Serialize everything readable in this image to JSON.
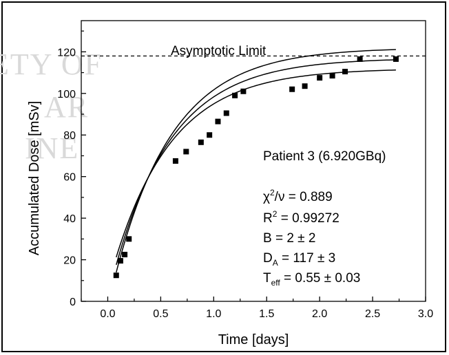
{
  "watermark": {
    "lines": [
      "ETY OF",
      "AR",
      "INE"
    ]
  },
  "chart_data": {
    "type": "scatter",
    "xlabel": "Time [days]",
    "ylabel": "Accumulated Dose [mSv]",
    "xlim": [
      -0.25,
      3.0
    ],
    "ylim": [
      0,
      135
    ],
    "xticks": [
      0.0,
      0.5,
      1.0,
      1.5,
      2.0,
      2.5,
      3.0
    ],
    "xtick_labels": [
      "0.0",
      "0.5",
      "1.0",
      "1.5",
      "2.0",
      "2.5",
      "3.0"
    ],
    "yticks": [
      0,
      20,
      40,
      60,
      80,
      100,
      120
    ],
    "ytick_labels": [
      "0",
      "20",
      "40",
      "60",
      "80",
      "100",
      "120"
    ],
    "grid": false,
    "series": [
      {
        "marker": "square",
        "color": "#000000",
        "x": [
          0.08,
          0.12,
          0.16,
          0.2,
          0.64,
          0.74,
          0.88,
          0.96,
          1.04,
          1.12,
          1.2,
          1.28,
          1.74,
          1.86,
          2.0,
          2.12,
          2.24,
          2.38,
          2.72
        ],
        "y": [
          12.5,
          19.5,
          22.5,
          30,
          67.5,
          72,
          76.5,
          80,
          86.5,
          90.5,
          99,
          101,
          102,
          103.5,
          107.5,
          108.5,
          110.5,
          116.5,
          116.5
        ]
      }
    ],
    "fit": {
      "D_A": 117,
      "B": 2,
      "T_eff": 0.55,
      "x_range": [
        0.08,
        2.72
      ],
      "upper_band_D_A": 122,
      "upper_band_B": -3,
      "lower_band_D_A": 112,
      "lower_band_B": 7
    },
    "reference_line": {
      "y": 118,
      "label": "Asymptotic Limit",
      "style": "dashed"
    },
    "annotations": {
      "patient": "Patient 3 (6.920GBq)",
      "chi_chi": "χ",
      "chi_sup": "2",
      "chi_rest": "/ν = 0.889",
      "r_main": "R",
      "r_sup": "2",
      "r_rest": " = 0.99272",
      "b_line": "B = 2  ± 2",
      "da_main": "D",
      "da_sub": "A",
      "da_rest": " = 117  ± 3",
      "teff_main": "T",
      "teff_sub": "eff",
      "teff_rest": " = 0.55 ± 0.03"
    }
  }
}
